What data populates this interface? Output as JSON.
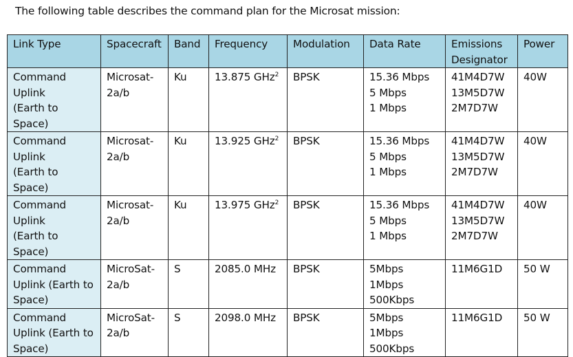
{
  "intro_text": "The following table describes the command plan for the Microsat mission:",
  "table": {
    "headers": {
      "link_type": "Link Type",
      "spacecraft": "Spacecraft",
      "band": "Band",
      "frequency": "Frequency",
      "modulation": "Modulation",
      "data_rate": "Data Rate",
      "emissions": "Emissions\nDesignator",
      "power": "Power"
    },
    "rows": [
      {
        "link_type": "Command\nUplink\n(Earth to\nSpace)",
        "spacecraft": "Microsat-\n2a/b",
        "band": "Ku",
        "frequency": "13.875 GHz",
        "freq_note": "2",
        "modulation": "BPSK",
        "data_rate": "15.36 Mbps\n5 Mbps\n1 Mbps",
        "emissions": "41M4D7W\n13M5D7W\n2M7D7W",
        "power": "40W"
      },
      {
        "link_type": "Command\nUplink\n(Earth to\nSpace)",
        "spacecraft": "Microsat-\n2a/b",
        "band": "Ku",
        "frequency": "13.925 GHz",
        "freq_note": "2",
        "modulation": "BPSK",
        "data_rate": "15.36 Mbps\n5 Mbps\n1 Mbps",
        "emissions": "41M4D7W\n13M5D7W\n2M7D7W",
        "power": "40W"
      },
      {
        "link_type": "Command\nUplink\n(Earth to\nSpace)",
        "spacecraft": "Microsat-\n2a/b",
        "band": "Ku",
        "frequency": "13.975 GHz",
        "freq_note": "2",
        "modulation": "BPSK",
        "data_rate": "15.36 Mbps\n5 Mbps\n1 Mbps",
        "emissions": "41M4D7W\n13M5D7W\n2M7D7W",
        "power": "40W"
      },
      {
        "link_type": "Command\nUplink (Earth to\nSpace)",
        "spacecraft": "MicroSat-\n2a/b",
        "band": "S",
        "frequency": "2085.0 MHz",
        "freq_note": "",
        "modulation": "BPSK",
        "data_rate": "5Mbps\n1Mbps\n500Kbps",
        "emissions": "11M6G1D",
        "power": "50 W"
      },
      {
        "link_type": "Command\nUplink (Earth to\nSpace)",
        "spacecraft": "MicroSat-\n2a/b",
        "band": "S",
        "frequency": "2098.0 MHz",
        "freq_note": "",
        "modulation": "BPSK",
        "data_rate": "5Mbps\n1Mbps\n500Kbps",
        "emissions": "11M6G1D",
        "power": "50 W"
      }
    ]
  }
}
